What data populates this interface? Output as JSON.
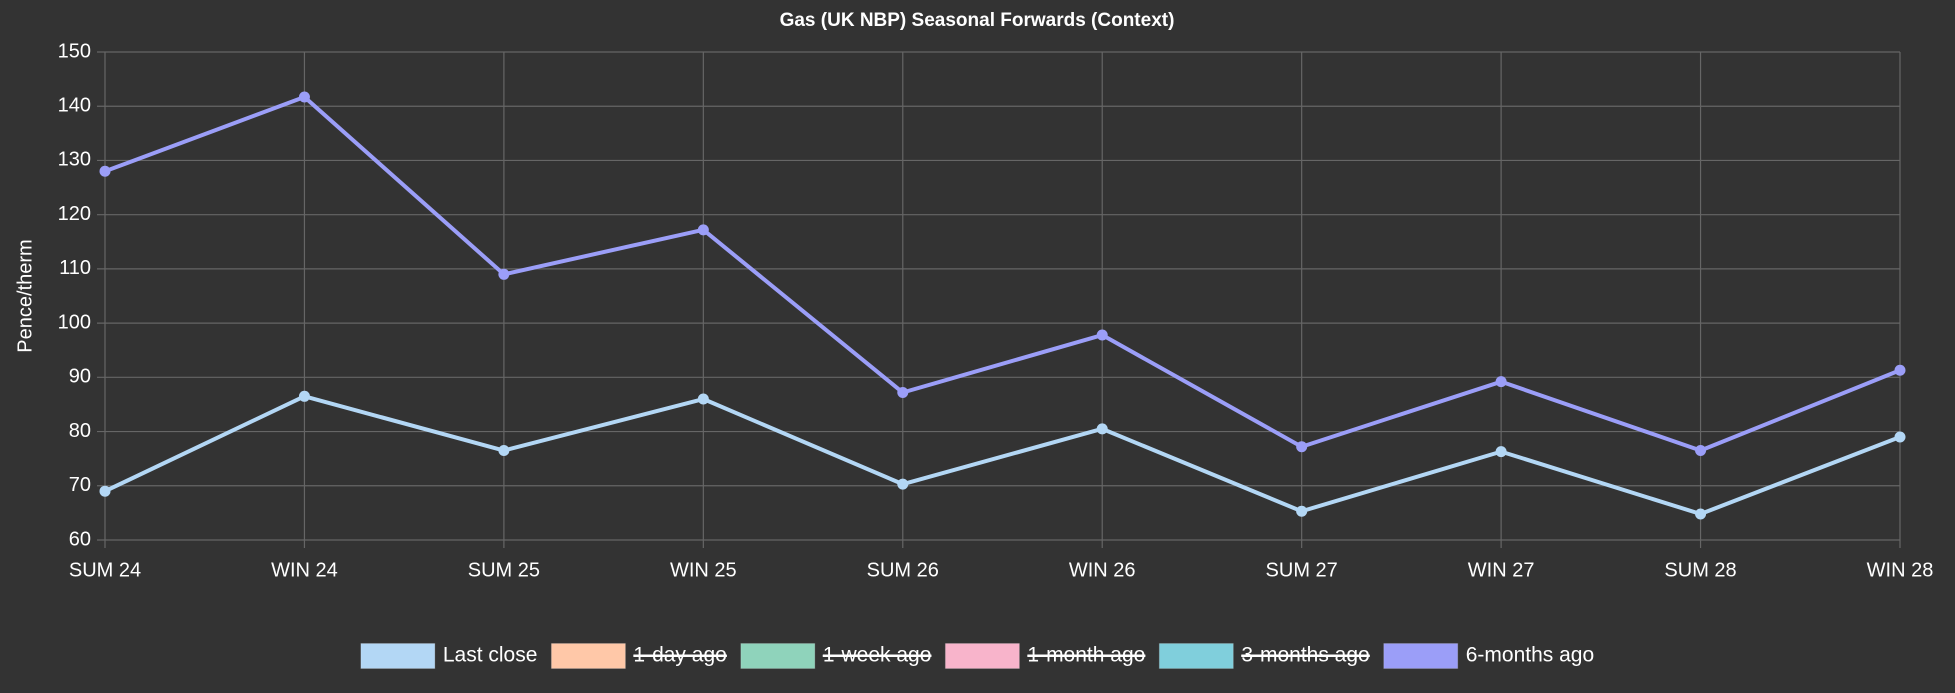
{
  "chart_data": {
    "type": "line",
    "title": "Gas (UK NBP) Seasonal Forwards (Context)",
    "y_label": "Pence/therm",
    "categories": [
      "SUM 24",
      "WIN 24",
      "SUM 25",
      "WIN 25",
      "SUM 26",
      "WIN 26",
      "SUM 27",
      "WIN 27",
      "SUM 28",
      "WIN 28"
    ],
    "series": [
      {
        "name": "Last close",
        "color": "#b3d7f5",
        "values": [
          69,
          86.5,
          76.5,
          86,
          70.3,
          80.5,
          65.3,
          76.3,
          64.8,
          79
        ]
      },
      {
        "name": "1-day ago",
        "color": "#ffc8a8",
        "hidden": true
      },
      {
        "name": "1-week ago",
        "color": "#8fd3bb",
        "hidden": true
      },
      {
        "name": "1-month ago",
        "color": "#f8b4cb",
        "hidden": true
      },
      {
        "name": "3-months ago",
        "color": "#80cfdc",
        "hidden": true
      },
      {
        "name": "6-months ago",
        "color": "#9b9ef8",
        "values": [
          128,
          141.7,
          109,
          117.2,
          87.2,
          97.8,
          77.2,
          89.2,
          76.5,
          91.3
        ]
      }
    ],
    "ylim": [
      60,
      150
    ],
    "yticks": [
      60,
      70,
      80,
      90,
      100,
      110,
      120,
      130,
      140,
      150
    ],
    "grid": true,
    "legend": "bottom"
  }
}
